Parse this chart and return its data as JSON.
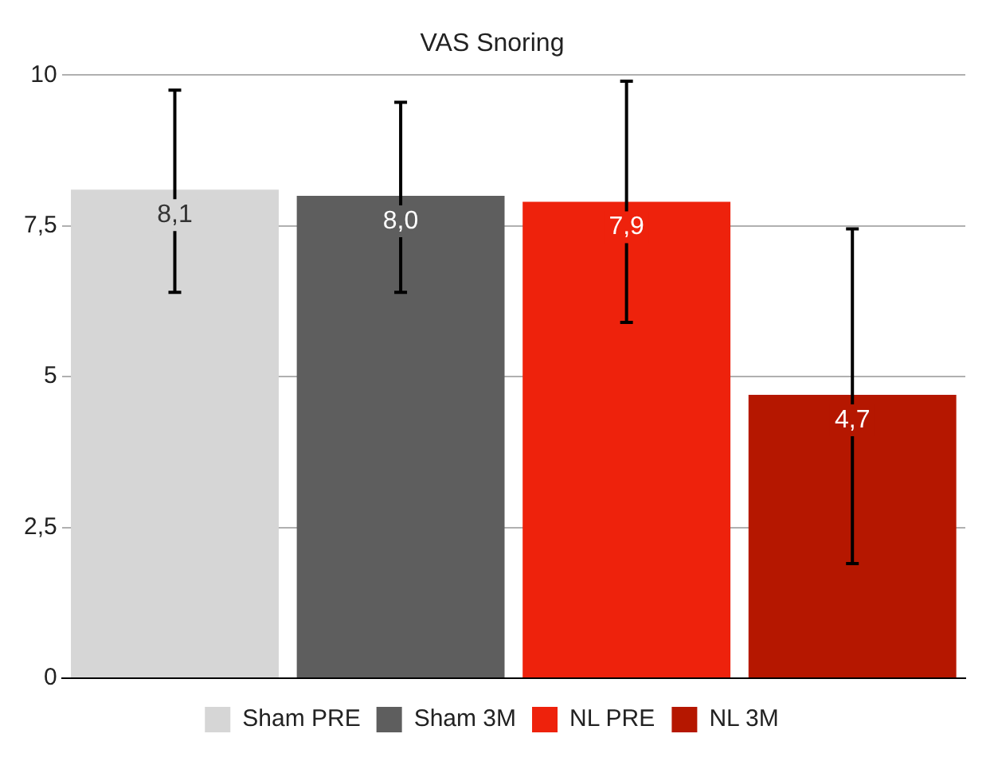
{
  "chart_data": {
    "type": "bar",
    "title": "VAS Snoring",
    "categories": [
      null
    ],
    "series": [
      {
        "name": "Sham PRE",
        "color": "#d6d6d6",
        "values": [
          8.1
        ],
        "errors": [
          [
            6.4,
            9.75
          ]
        ],
        "value_labels": [
          "8,1"
        ]
      },
      {
        "name": "Sham 3M",
        "color": "#5e5e5e",
        "values": [
          8.0
        ],
        "errors": [
          [
            6.4,
            9.55
          ]
        ],
        "value_labels": [
          "8,0"
        ]
      },
      {
        "name": "NL PRE",
        "color": "#ee220c",
        "values": [
          7.9
        ],
        "errors": [
          [
            5.9,
            9.9
          ]
        ],
        "value_labels": [
          "7,9"
        ]
      },
      {
        "name": "NL 3M",
        "color": "#b51700",
        "values": [
          4.7
        ],
        "errors": [
          [
            1.9,
            7.45
          ]
        ],
        "value_labels": [
          "4,7"
        ]
      }
    ],
    "ylim": [
      0,
      10
    ],
    "yticks": [
      0,
      {
        "value": 2.5,
        "label": "2,5"
      },
      5,
      {
        "value": 7.5,
        "label": "7,5"
      },
      10
    ],
    "grid": "y",
    "legend": "bottom"
  }
}
